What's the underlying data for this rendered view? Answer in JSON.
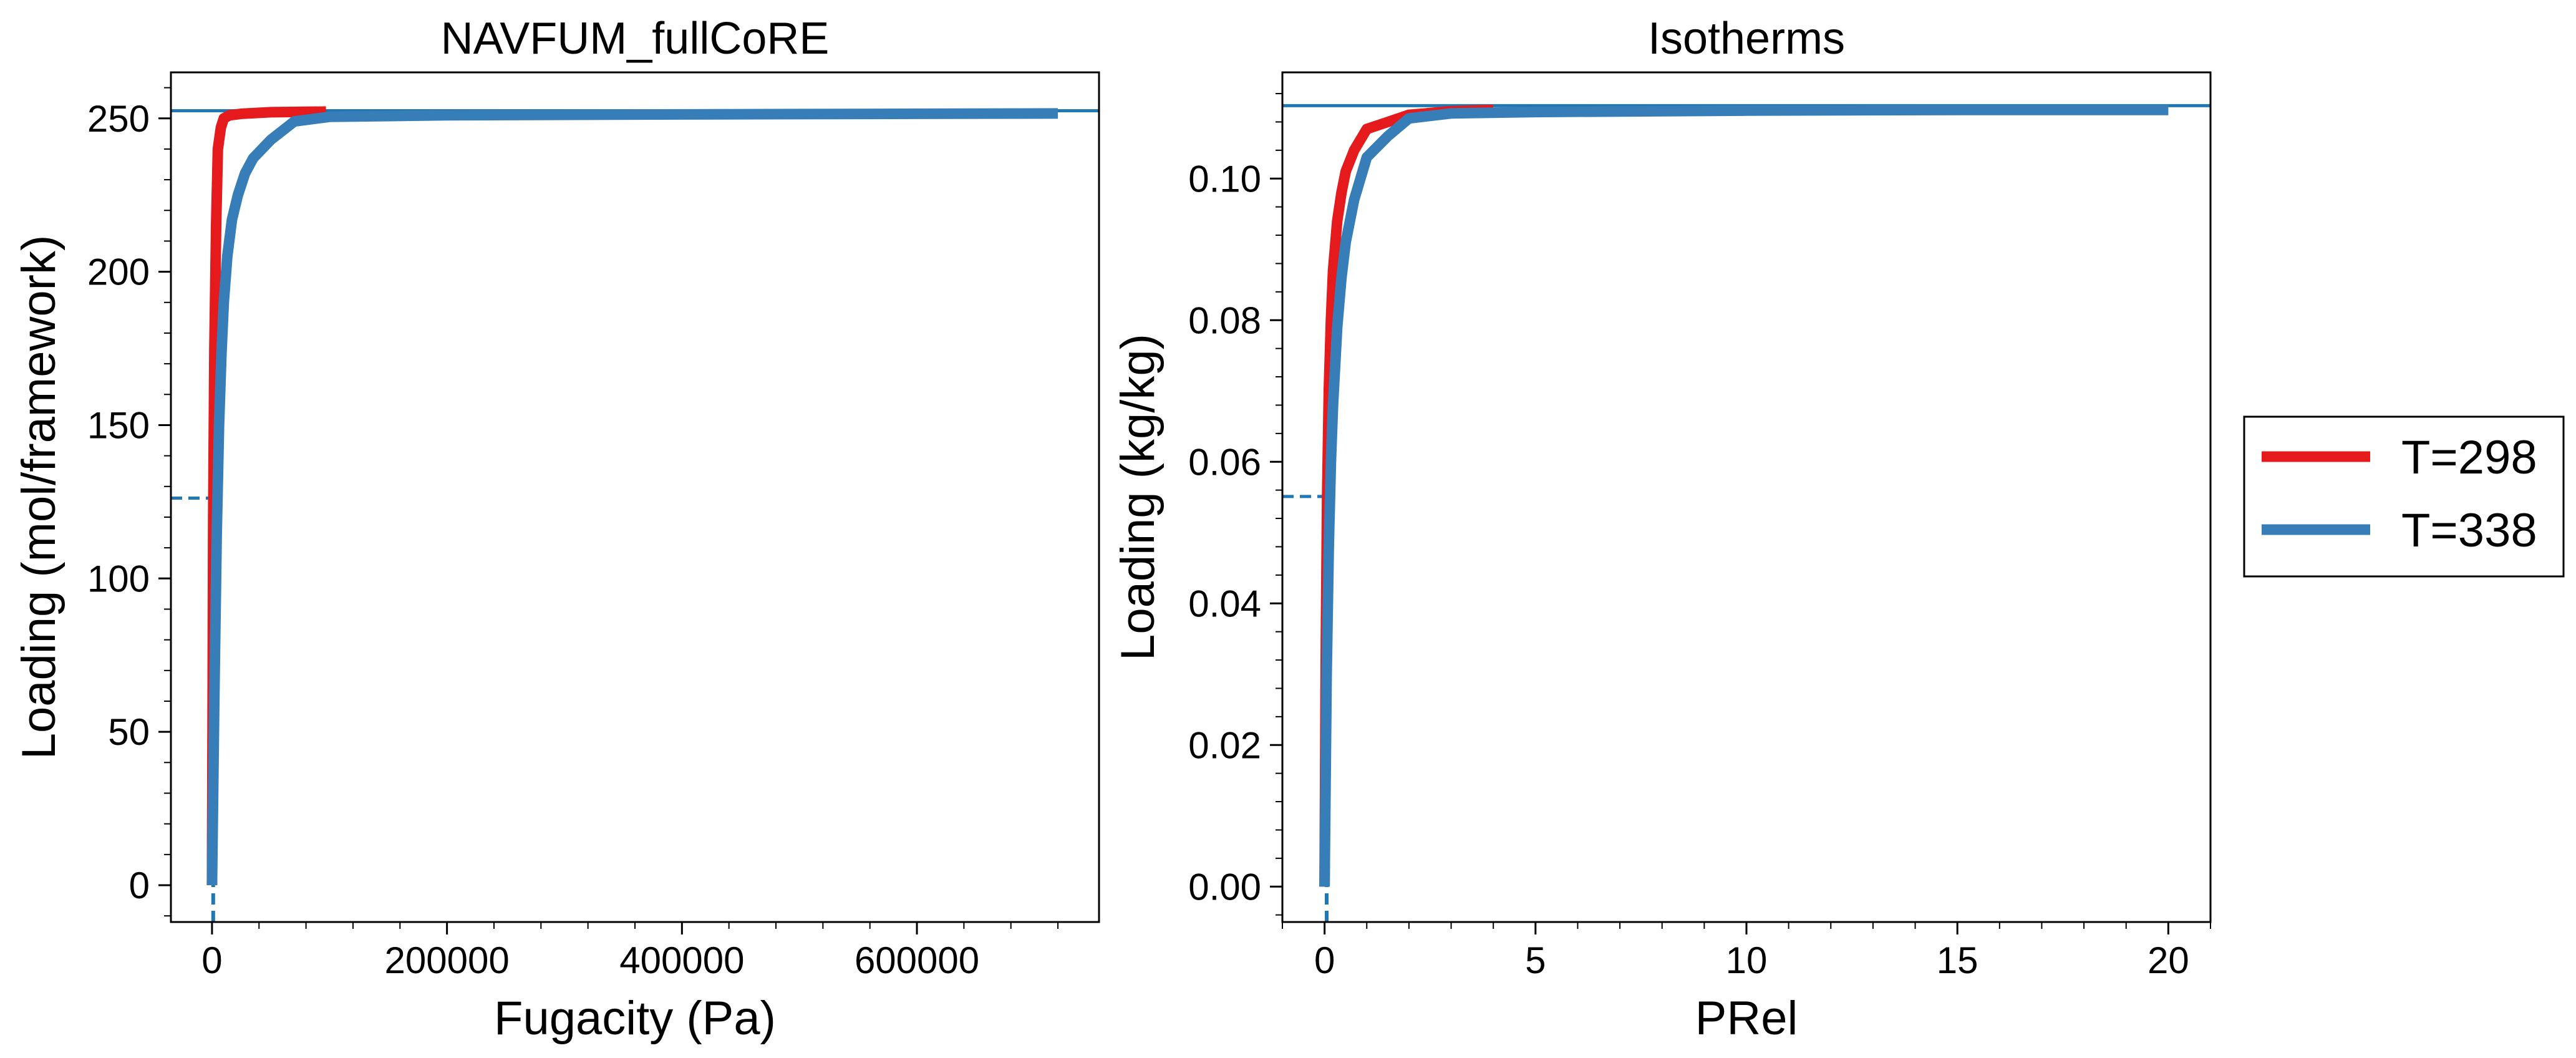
{
  "chart_data": [
    {
      "type": "line",
      "title": "NAVFUM_fullCoRE",
      "xlabel": "Fugacity (Pa)",
      "ylabel": "Loading (mol/framework)",
      "xlim": [
        -35000,
        755000
      ],
      "ylim": [
        -12,
        265
      ],
      "x_ticks": [
        0,
        200000,
        400000,
        600000
      ],
      "x_tick_labels": [
        "0",
        "200000",
        "400000",
        "600000"
      ],
      "y_ticks": [
        0,
        50,
        100,
        150,
        200,
        250
      ],
      "y_tick_labels": [
        "0",
        "50",
        "100",
        "150",
        "200",
        "250"
      ],
      "grid": false,
      "reference_lines": {
        "horizontal_solid_y": 252.5,
        "horizontal_dashed_y": 126.2,
        "vertical_dashed_x": 1000
      },
      "series": [
        {
          "name": "T=298",
          "color": "#e41a1c",
          "x": [
            0,
            500,
            1000,
            2000,
            3500,
            5000,
            7500,
            10000,
            15000,
            25000,
            50000,
            97000
          ],
          "y": [
            0,
            60,
            120,
            175,
            215,
            240,
            247,
            250,
            251,
            251.5,
            252,
            252.2
          ]
        },
        {
          "name": "T=338",
          "color": "#377eb8",
          "x": [
            0,
            2000,
            4000,
            6000,
            8000,
            10000,
            13000,
            17000,
            22000,
            28000,
            35000,
            50000,
            70000,
            100000,
            200000,
            400000,
            600000,
            720000
          ],
          "y": [
            0,
            62,
            115,
            150,
            173,
            190,
            205,
            217,
            225,
            232,
            237,
            243,
            249,
            250.5,
            251,
            251.3,
            251.5,
            251.6
          ]
        }
      ]
    },
    {
      "type": "line",
      "title": "Isotherms",
      "xlabel": "PRel",
      "ylabel": "Loading (kg/kg)",
      "xlim": [
        -1.0,
        21.0
      ],
      "ylim": [
        -0.005,
        0.115
      ],
      "x_ticks": [
        0,
        5,
        10,
        15,
        20
      ],
      "x_tick_labels": [
        "0",
        "5",
        "10",
        "15",
        "20"
      ],
      "y_ticks": [
        0.0,
        0.02,
        0.04,
        0.06,
        0.08,
        0.1
      ],
      "y_tick_labels": [
        "0.00",
        "0.02",
        "0.04",
        "0.06",
        "0.08",
        "0.10"
      ],
      "grid": false,
      "reference_lines": {
        "horizontal_solid_y": 0.1103,
        "horizontal_dashed_y": 0.0551,
        "vertical_dashed_x": 0.05
      },
      "series": [
        {
          "name": "T=298",
          "color": "#e41a1c",
          "x": [
            0,
            0.03,
            0.06,
            0.1,
            0.15,
            0.2,
            0.3,
            0.4,
            0.5,
            0.7,
            1.0,
            1.5,
            2.0,
            3.0,
            4.0
          ],
          "y": [
            0,
            0.035,
            0.055,
            0.07,
            0.08,
            0.087,
            0.094,
            0.098,
            0.101,
            0.104,
            0.107,
            0.108,
            0.109,
            0.1095,
            0.1097
          ]
        },
        {
          "name": "T=338",
          "color": "#377eb8",
          "x": [
            0,
            0.05,
            0.1,
            0.15,
            0.2,
            0.3,
            0.4,
            0.5,
            0.7,
            1.0,
            1.5,
            2.0,
            3.0,
            5.0,
            10.0,
            15.0,
            20.0
          ],
          "y": [
            0,
            0.03,
            0.048,
            0.06,
            0.068,
            0.079,
            0.086,
            0.091,
            0.097,
            0.103,
            0.106,
            0.1085,
            0.1092,
            0.1094,
            0.1096,
            0.1097,
            0.1097
          ]
        }
      ]
    }
  ],
  "legend": {
    "placement": "right",
    "entries": [
      {
        "label": "T=298",
        "color": "#e41a1c"
      },
      {
        "label": "T=338",
        "color": "#377eb8"
      }
    ]
  },
  "colors": {
    "reference_line": "#1f77b4",
    "axes": "#000000"
  }
}
